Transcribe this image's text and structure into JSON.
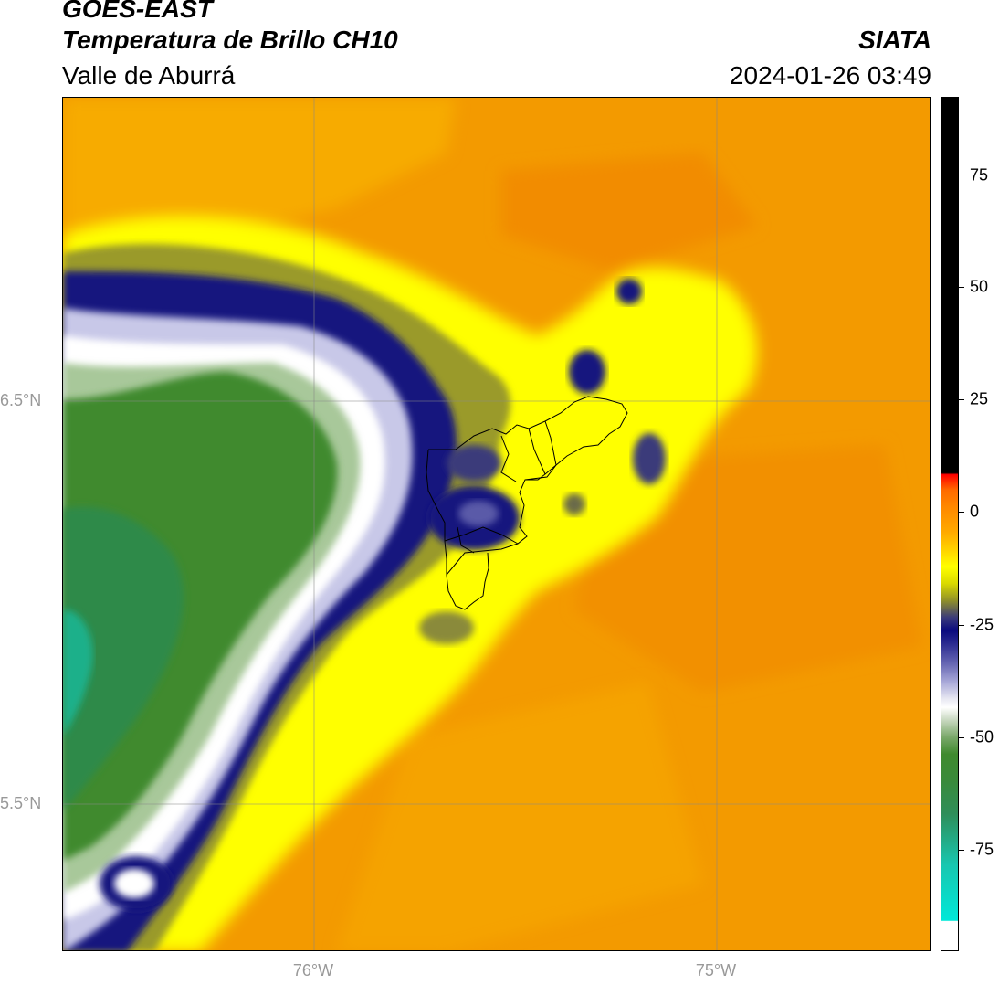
{
  "header": {
    "satellite": "GOES-EAST",
    "product": "Temperatura de Brillo CH10",
    "region": "Valle de Aburrá",
    "org": "SIATA",
    "datetime": "2024-01-26 03:49"
  },
  "map": {
    "lat_ticks": [
      "6.5°N",
      "5.5°N"
    ],
    "lon_ticks": [
      "76°W",
      "75°W"
    ]
  },
  "colorbar": {
    "ticks": [
      "75",
      "50",
      "25",
      "0",
      "-25",
      "-50",
      "-75"
    ],
    "range": [
      -95,
      95
    ],
    "colors": {
      "warm": "#f39a00",
      "yellow": "#ffff00",
      "navy": "#0a0a7e",
      "white": "#ffffff",
      "green": "#3f8a2e",
      "cyan": "#00e8d8",
      "black": "#000000"
    }
  }
}
